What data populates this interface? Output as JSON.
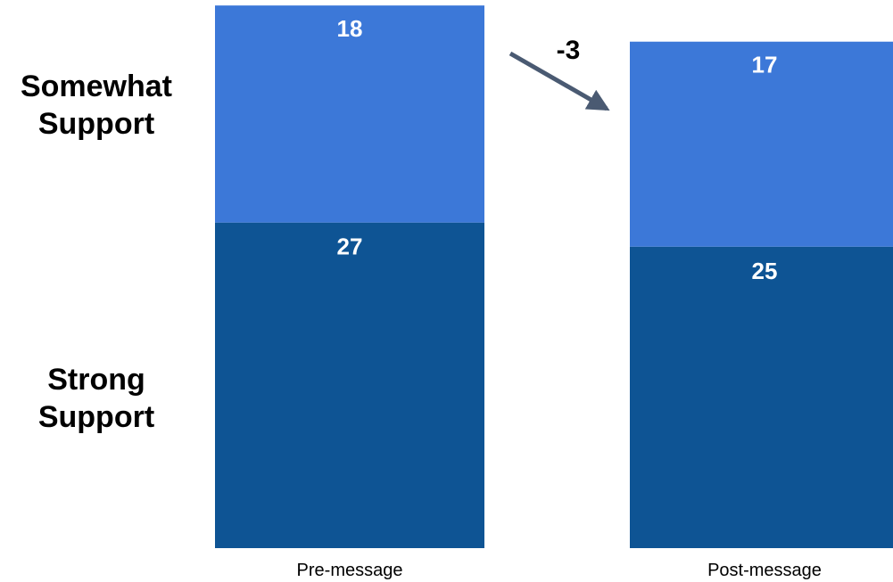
{
  "chart_data": {
    "type": "bar",
    "stacked": true,
    "categories": [
      "Pre-message",
      "Post-message"
    ],
    "series": [
      {
        "name": "Strong Support",
        "values": [
          27,
          25
        ],
        "color": "#0e5494"
      },
      {
        "name": "Somewhat Support",
        "values": [
          18,
          17
        ],
        "color": "#3c78d8"
      }
    ],
    "series_labels": [
      {
        "series": "Somewhat Support",
        "lines": [
          "Somewhat",
          "Support"
        ]
      },
      {
        "series": "Strong Support",
        "lines": [
          "Strong",
          "Support"
        ]
      }
    ],
    "change_annotation": {
      "text": "-3",
      "from": "Pre-message",
      "to": "Post-message"
    },
    "arrow_color": "#4a5a72",
    "grid": false,
    "legend": "none"
  }
}
